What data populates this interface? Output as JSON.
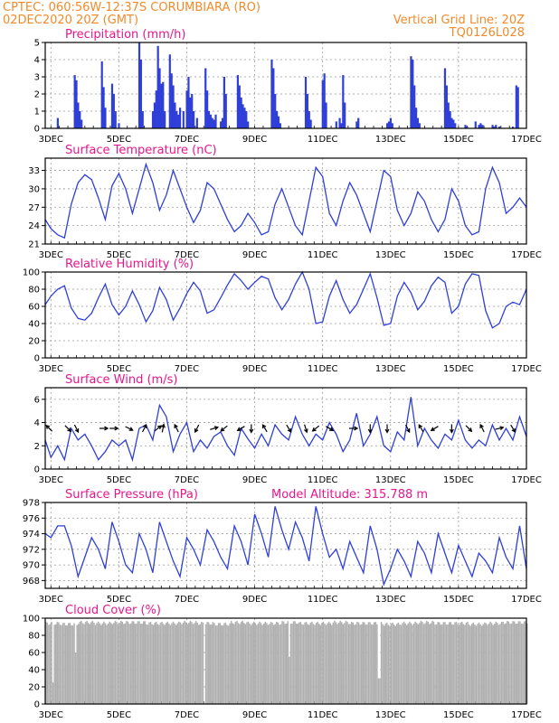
{
  "header": {
    "line1": "CPTEC:   060:56W-12:37S   CORUMBIARA (RO)",
    "line2": "02DEC2020 20Z (GMT)",
    "grid_note": "Vertical Grid Line: 20Z",
    "code": "TQ0126L028"
  },
  "colors": {
    "line": "#2f3fd8",
    "bar": "#2f3fd8",
    "cloud": "#b0b0b0",
    "header": "#f28a2a",
    "title": "#e8168c",
    "arrow": "#000000"
  },
  "x_axis": {
    "start_day": 2.833,
    "end_day": 17.0,
    "ticks": [
      {
        "day": 3,
        "label": "3DEC"
      },
      {
        "day": 5,
        "label": "5DEC"
      },
      {
        "day": 7,
        "label": "7DEC"
      },
      {
        "day": 9,
        "label": "9DEC"
      },
      {
        "day": 11,
        "label": "11DEC"
      },
      {
        "day": 13,
        "label": "13DEC"
      },
      {
        "day": 15,
        "label": "15DEC"
      },
      {
        "day": 17,
        "label": "17DEC"
      }
    ]
  },
  "chart_data": [
    {
      "type": "bar",
      "title": "Precipitation (mm/h)",
      "ylim": [
        0,
        5
      ],
      "yticks": [
        0,
        1,
        2,
        3,
        4,
        5
      ],
      "x": [
        3.2,
        3.7,
        3.75,
        3.8,
        3.85,
        3.9,
        4.5,
        4.55,
        4.6,
        4.8,
        4.85,
        4.9,
        5.0,
        5.6,
        5.65,
        5.7,
        6.0,
        6.05,
        6.1,
        6.15,
        6.2,
        6.25,
        6.3,
        6.35,
        6.5,
        6.55,
        6.6,
        6.65,
        6.7,
        6.75,
        6.8,
        6.9,
        7.0,
        7.05,
        7.1,
        7.15,
        7.2,
        7.3,
        7.55,
        7.6,
        7.65,
        7.7,
        7.75,
        7.8,
        7.85,
        8.0,
        8.05,
        8.1,
        8.15,
        8.5,
        8.55,
        8.6,
        8.65,
        8.7,
        8.75,
        8.8,
        9.5,
        9.55,
        9.6,
        9.65,
        9.7,
        9.75,
        10.5,
        10.55,
        10.6,
        10.65,
        11.0,
        11.05,
        11.1,
        11.4,
        11.5,
        11.55,
        11.6,
        11.65,
        12.0,
        12.05,
        12.9,
        12.95,
        13.0,
        13.05,
        13.6,
        13.65,
        13.7,
        13.75,
        13.8,
        13.85,
        14.6,
        14.65,
        14.7,
        14.75,
        14.8,
        14.85,
        14.9,
        15.2,
        15.25,
        15.5,
        15.6,
        15.65,
        15.7,
        16.0,
        16.05,
        16.1,
        16.2,
        16.6,
        16.7,
        16.75
      ],
      "values": [
        0.6,
        3.1,
        2.8,
        1.5,
        1.0,
        0.5,
        3.9,
        2.4,
        1.2,
        2.6,
        2.0,
        1.0,
        0.3,
        5.0,
        4.0,
        1.0,
        1.0,
        1.5,
        2.2,
        4.8,
        3.5,
        2.6,
        2.7,
        1.0,
        4.3,
        3.2,
        2.5,
        1.5,
        1.0,
        0.8,
        1.2,
        1.0,
        2.2,
        3.0,
        1.8,
        2.0,
        1.0,
        0.6,
        3.5,
        2.2,
        1.0,
        0.8,
        0.6,
        0.5,
        0.8,
        0.4,
        0.6,
        3.0,
        2.0,
        3.1,
        2.5,
        1.8,
        1.4,
        1.2,
        1.0,
        0.4,
        4.0,
        3.5,
        2.0,
        1.0,
        0.7,
        0.3,
        3.0,
        2.0,
        1.0,
        0.5,
        2.8,
        3.2,
        1.5,
        0.4,
        0.6,
        0.3,
        3.1,
        1.5,
        0.4,
        0.6,
        0.3,
        0.4,
        0.6,
        0.3,
        4.2,
        4.0,
        2.5,
        1.2,
        0.6,
        0.3,
        3.5,
        2.5,
        1.5,
        1.0,
        0.6,
        0.5,
        0.3,
        0.2,
        0.1,
        0.4,
        0.2,
        0.3,
        0.2,
        0.2,
        0.1,
        0.2,
        0.1,
        0.1,
        2.5,
        2.4
      ]
    },
    {
      "type": "line",
      "title": "Surface Temperature (nC)",
      "ylim": [
        21,
        35
      ],
      "yticks": [
        21,
        24,
        27,
        30,
        33
      ],
      "x": [
        2.833,
        3.0,
        3.2,
        3.4,
        3.6,
        3.8,
        4.0,
        4.2,
        4.4,
        4.6,
        4.8,
        5.0,
        5.2,
        5.4,
        5.6,
        5.8,
        6.0,
        6.2,
        6.4,
        6.6,
        6.8,
        7.0,
        7.2,
        7.4,
        7.6,
        7.8,
        8.0,
        8.2,
        8.4,
        8.6,
        8.8,
        9.0,
        9.2,
        9.4,
        9.6,
        9.8,
        10.0,
        10.2,
        10.4,
        10.6,
        10.8,
        11.0,
        11.2,
        11.4,
        11.6,
        11.8,
        12.0,
        12.2,
        12.4,
        12.6,
        12.8,
        13.0,
        13.2,
        13.4,
        13.6,
        13.8,
        14.0,
        14.2,
        14.4,
        14.6,
        14.8,
        15.0,
        15.2,
        15.4,
        15.6,
        15.8,
        16.0,
        16.2,
        16.4,
        16.6,
        16.8,
        17.0
      ],
      "values": [
        25.0,
        23.5,
        22.5,
        22.0,
        27.5,
        31.0,
        32.3,
        31.5,
        28.5,
        25.0,
        30.5,
        32.5,
        30.0,
        26.0,
        30.0,
        34.0,
        31.0,
        26.5,
        29.0,
        33.0,
        30.0,
        27.0,
        24.5,
        26.5,
        31.0,
        30.0,
        27.5,
        25.0,
        23.0,
        24.0,
        26.0,
        24.5,
        22.5,
        23.0,
        27.5,
        30.0,
        27.0,
        24.0,
        22.5,
        28.0,
        33.5,
        32.0,
        26.0,
        24.0,
        28.0,
        31.0,
        29.0,
        26.0,
        23.0,
        28.0,
        33.0,
        32.0,
        26.5,
        24.0,
        26.0,
        29.5,
        28.0,
        25.0,
        23.0,
        25.0,
        30.0,
        28.0,
        24.0,
        22.5,
        23.0,
        30.0,
        33.5,
        31.0,
        26.0,
        27.0,
        28.5,
        27.0
      ]
    },
    {
      "type": "line",
      "title": "Relative Humidity (%)",
      "ylim": [
        0,
        100
      ],
      "yticks": [
        0,
        20,
        40,
        60,
        80,
        100
      ],
      "x": [
        2.833,
        3.0,
        3.2,
        3.4,
        3.6,
        3.8,
        4.0,
        4.2,
        4.4,
        4.6,
        4.8,
        5.0,
        5.2,
        5.4,
        5.6,
        5.8,
        6.0,
        6.2,
        6.4,
        6.6,
        6.8,
        7.0,
        7.2,
        7.4,
        7.6,
        7.8,
        8.0,
        8.2,
        8.4,
        8.6,
        8.8,
        9.0,
        9.2,
        9.4,
        9.6,
        9.8,
        10.0,
        10.2,
        10.4,
        10.6,
        10.8,
        11.0,
        11.2,
        11.4,
        11.6,
        11.8,
        12.0,
        12.2,
        12.4,
        12.6,
        12.8,
        13.0,
        13.2,
        13.4,
        13.6,
        13.8,
        14.0,
        14.2,
        14.4,
        14.6,
        14.8,
        15.0,
        15.2,
        15.4,
        15.6,
        15.8,
        16.0,
        16.2,
        16.4,
        16.6,
        16.8,
        17.0
      ],
      "values": [
        62.0,
        72.0,
        80.0,
        84.0,
        58.0,
        46.0,
        44.0,
        52.0,
        70.0,
        86.0,
        62.0,
        50.0,
        60.0,
        78.0,
        62.0,
        42.0,
        55.0,
        82.0,
        68.0,
        44.0,
        58.0,
        75.0,
        88.0,
        78.0,
        52.0,
        56.0,
        70.0,
        85.0,
        98.0,
        90.0,
        80.0,
        88.0,
        95.0,
        92.0,
        70.0,
        56.0,
        68.0,
        86.0,
        100.0,
        80.0,
        40.0,
        42.0,
        72.0,
        90.0,
        68.0,
        52.0,
        62.0,
        80.0,
        98.0,
        70.0,
        38.0,
        40.0,
        72.0,
        88.0,
        76.0,
        56.0,
        66.0,
        84.0,
        94.0,
        88.0,
        52.0,
        60.0,
        86.0,
        98.0,
        96.0,
        55.0,
        35.0,
        40.0,
        60.0,
        65.0,
        62.0,
        80.0
      ]
    },
    {
      "type": "line",
      "title": "Surface Wind (m/s)",
      "ylim": [
        0,
        7
      ],
      "yticks": [
        0,
        2,
        4,
        6
      ],
      "x": [
        2.833,
        3.0,
        3.2,
        3.4,
        3.6,
        3.8,
        4.0,
        4.2,
        4.4,
        4.6,
        4.8,
        5.0,
        5.2,
        5.4,
        5.6,
        5.8,
        6.0,
        6.2,
        6.4,
        6.6,
        6.8,
        7.0,
        7.2,
        7.4,
        7.6,
        7.8,
        8.0,
        8.2,
        8.4,
        8.6,
        8.8,
        9.0,
        9.2,
        9.4,
        9.6,
        9.8,
        10.0,
        10.2,
        10.4,
        10.6,
        10.8,
        11.0,
        11.2,
        11.4,
        11.6,
        11.8,
        12.0,
        12.2,
        12.4,
        12.6,
        12.8,
        13.0,
        13.2,
        13.4,
        13.6,
        13.8,
        14.0,
        14.2,
        14.4,
        14.6,
        14.8,
        15.0,
        15.2,
        15.4,
        15.6,
        15.8,
        16.0,
        16.2,
        16.4,
        16.6,
        16.8,
        17.0
      ],
      "values": [
        2.5,
        1.0,
        2.0,
        0.8,
        3.5,
        2.5,
        3.0,
        2.0,
        0.8,
        1.5,
        2.5,
        2.0,
        2.5,
        0.8,
        3.5,
        3.8,
        2.5,
        5.5,
        4.5,
        1.5,
        3.0,
        4.0,
        1.5,
        2.5,
        1.8,
        2.8,
        3.2,
        2.0,
        1.2,
        3.5,
        2.6,
        1.8,
        3.0,
        2.0,
        3.8,
        3.0,
        2.5,
        4.5,
        3.0,
        2.0,
        3.0,
        2.5,
        4.0,
        3.0,
        1.5,
        2.5,
        4.8,
        2.0,
        3.0,
        4.5,
        2.0,
        1.5,
        3.2,
        2.5,
        6.2,
        2.0,
        3.5,
        2.5,
        1.8,
        3.0,
        2.5,
        4.2,
        2.5,
        1.8,
        2.5,
        2.0,
        3.8,
        2.5,
        3.5,
        2.5,
        4.5,
        2.8
      ]
    },
    {
      "type": "line",
      "title": "Surface Pressure (hPa)",
      "annotation": "Model Altitude: 315.788  m",
      "ylim": [
        967,
        978
      ],
      "yticks": [
        968,
        970,
        972,
        974,
        976,
        978
      ],
      "x": [
        2.833,
        3.0,
        3.2,
        3.4,
        3.6,
        3.8,
        4.0,
        4.2,
        4.4,
        4.6,
        4.8,
        5.0,
        5.2,
        5.4,
        5.6,
        5.8,
        6.0,
        6.2,
        6.4,
        6.6,
        6.8,
        7.0,
        7.2,
        7.4,
        7.6,
        7.8,
        8.0,
        8.2,
        8.4,
        8.6,
        8.8,
        9.0,
        9.2,
        9.4,
        9.6,
        9.8,
        10.0,
        10.2,
        10.4,
        10.6,
        10.8,
        11.0,
        11.2,
        11.4,
        11.6,
        11.8,
        12.0,
        12.2,
        12.4,
        12.6,
        12.8,
        13.0,
        13.2,
        13.4,
        13.6,
        13.8,
        14.0,
        14.2,
        14.4,
        14.6,
        14.8,
        15.0,
        15.2,
        15.4,
        15.6,
        15.8,
        16.0,
        16.2,
        16.4,
        16.6,
        16.8,
        17.0
      ],
      "values": [
        974.0,
        973.5,
        975.0,
        975.0,
        972.5,
        968.5,
        971.0,
        973.5,
        972.0,
        969.5,
        975.5,
        973.0,
        970.0,
        969.0,
        974.0,
        972.0,
        969.0,
        975.5,
        973.0,
        970.5,
        968.5,
        973.5,
        972.0,
        970.0,
        974.5,
        973.0,
        971.0,
        969.5,
        975.0,
        973.0,
        970.0,
        976.5,
        974.0,
        971.0,
        977.5,
        974.5,
        972.0,
        975.5,
        973.5,
        970.5,
        977.5,
        974.0,
        971.0,
        972.0,
        969.5,
        973.0,
        971.0,
        969.0,
        975.0,
        972.0,
        967.5,
        969.5,
        972.0,
        970.5,
        968.5,
        973.0,
        971.5,
        969.0,
        974.0,
        971.5,
        969.0,
        972.5,
        970.5,
        968.5,
        971.5,
        970.5,
        969.0,
        973.5,
        971.0,
        969.5,
        975.0,
        969.5
      ]
    },
    {
      "type": "bar",
      "title": "Cloud Cover (%)",
      "ylim": [
        0,
        100
      ],
      "yticks": [
        0,
        20,
        40,
        60,
        80,
        100
      ],
      "x": [
        3.0,
        3.5,
        4.0,
        4.5,
        5.0,
        5.5,
        6.0,
        6.5,
        7.0,
        7.5,
        8.0,
        8.5,
        9.0,
        9.5,
        10.0,
        10.5,
        11.0,
        11.5,
        12.0,
        12.5,
        13.0,
        13.5,
        14.0,
        14.5,
        15.0,
        15.5,
        16.0,
        16.5,
        17.0
      ],
      "values": [
        96,
        95,
        97,
        96,
        97,
        97,
        96,
        96,
        97,
        96,
        95,
        97,
        96,
        96,
        97,
        96,
        96,
        97,
        96,
        96,
        95,
        96,
        97,
        96,
        96,
        95,
        96,
        97,
        97
      ],
      "dips": [
        {
          "day": 3.05,
          "value": 25
        },
        {
          "day": 3.7,
          "value": 60
        },
        {
          "day": 7.5,
          "value": 0
        },
        {
          "day": 10.0,
          "value": 55
        },
        {
          "day": 12.65,
          "value": 30
        }
      ]
    }
  ],
  "wind_arrows": [
    {
      "day": 2.95,
      "u": -1,
      "v": 1
    },
    {
      "day": 3.5,
      "u": 1,
      "v": -1
    },
    {
      "day": 3.75,
      "u": 0.5,
      "v": -1
    },
    {
      "day": 4.55,
      "u": 1,
      "v": 0
    },
    {
      "day": 4.85,
      "u": 1,
      "v": 0
    },
    {
      "day": 5.3,
      "u": 1,
      "v": -0.5
    },
    {
      "day": 5.75,
      "u": 0.5,
      "v": 1
    },
    {
      "day": 6.15,
      "u": 1,
      "v": 0.8
    },
    {
      "day": 6.3,
      "u": 0.2,
      "v": 1
    },
    {
      "day": 6.7,
      "u": -0.5,
      "v": 1
    },
    {
      "day": 7.3,
      "u": -0.5,
      "v": -1
    },
    {
      "day": 7.8,
      "u": 1,
      "v": 0.3
    },
    {
      "day": 8.1,
      "u": -1,
      "v": -0.8
    },
    {
      "day": 8.6,
      "u": -1,
      "v": -0.6
    },
    {
      "day": 8.9,
      "u": 0,
      "v": -1
    },
    {
      "day": 9.3,
      "u": -0.6,
      "v": 1
    },
    {
      "day": 10.0,
      "u": 0.6,
      "v": -1
    },
    {
      "day": 10.5,
      "u": 0.3,
      "v": -1
    },
    {
      "day": 10.8,
      "u": -1,
      "v": -0.8
    },
    {
      "day": 11.2,
      "u": 1,
      "v": -0.6
    },
    {
      "day": 11.9,
      "u": 1,
      "v": 0
    },
    {
      "day": 12.4,
      "u": 0,
      "v": -1
    },
    {
      "day": 12.9,
      "u": 0,
      "v": -1
    },
    {
      "day": 13.5,
      "u": 0.5,
      "v": -1
    },
    {
      "day": 13.9,
      "u": -0.6,
      "v": 1
    },
    {
      "day": 14.3,
      "u": -1,
      "v": -0.6
    },
    {
      "day": 14.8,
      "u": 0,
      "v": -1
    },
    {
      "day": 15.3,
      "u": 0.8,
      "v": -0.8
    },
    {
      "day": 15.7,
      "u": -0.5,
      "v": 1
    },
    {
      "day": 16.2,
      "u": 0.8,
      "v": 0.2
    },
    {
      "day": 16.6,
      "u": 0.6,
      "v": -1
    }
  ]
}
